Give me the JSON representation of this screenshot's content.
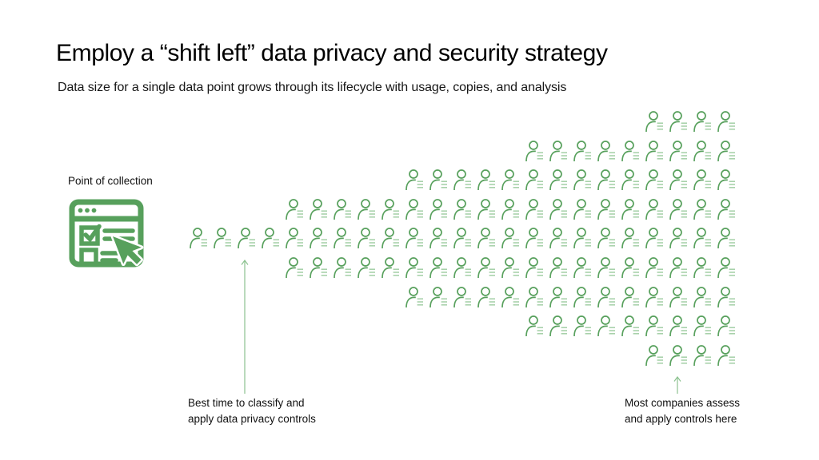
{
  "title": "Employ a “shift left” data privacy and security strategy",
  "subtitle": "Data size for a single data point grows through its lifecycle with usage, copies, and analysis",
  "colors": {
    "green": "#57a05c",
    "green_light": "#a3cfa6",
    "line_green": "#8cc290",
    "text": "#111111",
    "background": "#ffffff"
  },
  "collection_point": {
    "label": "Point of collection",
    "icon": "browser-form-icon"
  },
  "diagram": {
    "type": "icon-array",
    "icon": "person-with-data-icon",
    "description": "Arrow-shaped pictogram of person icons growing from point of collection; rows are right-aligned",
    "rows": [
      {
        "count": 4
      },
      {
        "count": 9
      },
      {
        "count": 14
      },
      {
        "count": 19
      },
      {
        "count": 23
      },
      {
        "count": 19
      },
      {
        "count": 14
      },
      {
        "count": 9
      },
      {
        "count": 4
      }
    ],
    "total_icons": 115,
    "alignment": "right"
  },
  "annotations": {
    "left": {
      "line1": "Best time to classify and",
      "line2": "apply data privacy controls"
    },
    "right": {
      "line1": "Most companies assess",
      "line2": "and apply controls here"
    }
  }
}
